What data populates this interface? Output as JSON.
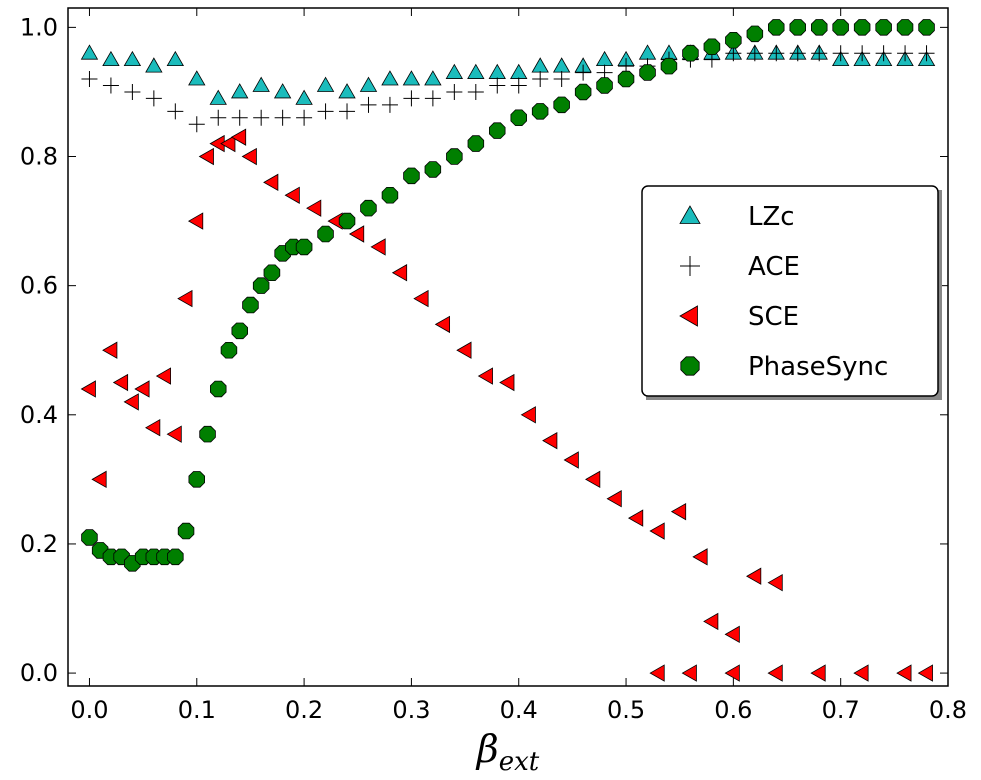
{
  "chart_data": {
    "type": "scatter",
    "title": "",
    "xlabel": "β_ext",
    "ylabel": "",
    "xlim": [
      -0.02,
      0.8
    ],
    "ylim": [
      -0.02,
      1.03
    ],
    "xticks": [
      "0.0",
      "0.1",
      "0.2",
      "0.3",
      "0.4",
      "0.5",
      "0.6",
      "0.7",
      "0.8"
    ],
    "yticks": [
      "0.0",
      "0.2",
      "0.4",
      "0.6",
      "0.8",
      "1.0"
    ],
    "grid": false,
    "legend_position": "center-right",
    "series": [
      {
        "name": "LZc",
        "marker": "triangle-up",
        "color": "#1bbcbc",
        "x": [
          0.0,
          0.02,
          0.04,
          0.06,
          0.08,
          0.1,
          0.12,
          0.14,
          0.16,
          0.18,
          0.2,
          0.22,
          0.24,
          0.26,
          0.28,
          0.3,
          0.32,
          0.34,
          0.36,
          0.38,
          0.4,
          0.42,
          0.44,
          0.46,
          0.48,
          0.5,
          0.52,
          0.54,
          0.56,
          0.58,
          0.6,
          0.62,
          0.64,
          0.66,
          0.68,
          0.7,
          0.72,
          0.74,
          0.76,
          0.78
        ],
        "y": [
          0.96,
          0.95,
          0.95,
          0.94,
          0.95,
          0.92,
          0.89,
          0.9,
          0.91,
          0.9,
          0.89,
          0.91,
          0.9,
          0.91,
          0.92,
          0.92,
          0.92,
          0.93,
          0.93,
          0.93,
          0.93,
          0.94,
          0.94,
          0.94,
          0.95,
          0.95,
          0.96,
          0.96,
          0.96,
          0.96,
          0.96,
          0.96,
          0.96,
          0.96,
          0.96,
          0.95,
          0.95,
          0.95,
          0.95,
          0.95
        ]
      },
      {
        "name": "ACE",
        "marker": "plus",
        "color": "#000000",
        "x": [
          0.0,
          0.02,
          0.04,
          0.06,
          0.08,
          0.1,
          0.12,
          0.14,
          0.16,
          0.18,
          0.2,
          0.22,
          0.24,
          0.26,
          0.28,
          0.3,
          0.32,
          0.34,
          0.36,
          0.38,
          0.4,
          0.42,
          0.44,
          0.46,
          0.48,
          0.5,
          0.52,
          0.54,
          0.56,
          0.58,
          0.6,
          0.62,
          0.64,
          0.66,
          0.68,
          0.7,
          0.72,
          0.74,
          0.76,
          0.78
        ],
        "y": [
          0.92,
          0.91,
          0.9,
          0.89,
          0.87,
          0.85,
          0.86,
          0.86,
          0.86,
          0.86,
          0.86,
          0.87,
          0.87,
          0.88,
          0.88,
          0.89,
          0.89,
          0.9,
          0.9,
          0.91,
          0.91,
          0.92,
          0.92,
          0.93,
          0.93,
          0.94,
          0.94,
          0.95,
          0.95,
          0.95,
          0.96,
          0.96,
          0.96,
          0.96,
          0.96,
          0.96,
          0.96,
          0.96,
          0.96,
          0.96
        ]
      },
      {
        "name": "SCE",
        "marker": "triangle-left",
        "color": "#ff0000",
        "x": [
          0.0,
          0.01,
          0.02,
          0.03,
          0.04,
          0.05,
          0.06,
          0.07,
          0.08,
          0.09,
          0.1,
          0.11,
          0.12,
          0.13,
          0.14,
          0.15,
          0.17,
          0.19,
          0.21,
          0.23,
          0.25,
          0.27,
          0.29,
          0.31,
          0.33,
          0.35,
          0.37,
          0.39,
          0.41,
          0.43,
          0.45,
          0.47,
          0.49,
          0.51,
          0.53,
          0.55,
          0.57,
          0.58,
          0.6,
          0.62,
          0.64,
          0.53,
          0.56,
          0.6,
          0.64,
          0.68,
          0.72,
          0.76,
          0.78
        ],
        "y": [
          0.44,
          0.3,
          0.5,
          0.45,
          0.42,
          0.44,
          0.38,
          0.46,
          0.37,
          0.58,
          0.7,
          0.8,
          0.82,
          0.82,
          0.83,
          0.8,
          0.76,
          0.74,
          0.72,
          0.7,
          0.68,
          0.66,
          0.62,
          0.58,
          0.54,
          0.5,
          0.46,
          0.45,
          0.4,
          0.36,
          0.33,
          0.3,
          0.27,
          0.24,
          0.22,
          0.25,
          0.18,
          0.08,
          0.06,
          0.15,
          0.14,
          0.0,
          0.0,
          0.0,
          0.0,
          0.0,
          0.0,
          0.0,
          0.0
        ]
      },
      {
        "name": "PhaseSync",
        "marker": "octagon",
        "color": "#007f00",
        "x": [
          0.0,
          0.01,
          0.02,
          0.03,
          0.04,
          0.05,
          0.06,
          0.07,
          0.08,
          0.09,
          0.1,
          0.11,
          0.12,
          0.13,
          0.14,
          0.15,
          0.16,
          0.17,
          0.18,
          0.19,
          0.2,
          0.22,
          0.24,
          0.26,
          0.28,
          0.3,
          0.32,
          0.34,
          0.36,
          0.38,
          0.4,
          0.42,
          0.44,
          0.46,
          0.48,
          0.5,
          0.52,
          0.54,
          0.56,
          0.58,
          0.6,
          0.62,
          0.64,
          0.66,
          0.68,
          0.7,
          0.72,
          0.74,
          0.76,
          0.78
        ],
        "y": [
          0.21,
          0.19,
          0.18,
          0.18,
          0.17,
          0.18,
          0.18,
          0.18,
          0.18,
          0.22,
          0.3,
          0.37,
          0.44,
          0.5,
          0.53,
          0.57,
          0.6,
          0.62,
          0.65,
          0.66,
          0.66,
          0.68,
          0.7,
          0.72,
          0.74,
          0.77,
          0.78,
          0.8,
          0.82,
          0.84,
          0.86,
          0.87,
          0.88,
          0.9,
          0.91,
          0.92,
          0.93,
          0.94,
          0.96,
          0.97,
          0.98,
          0.99,
          1.0,
          1.0,
          1.0,
          1.0,
          1.0,
          1.0,
          1.0,
          1.0
        ]
      }
    ]
  }
}
